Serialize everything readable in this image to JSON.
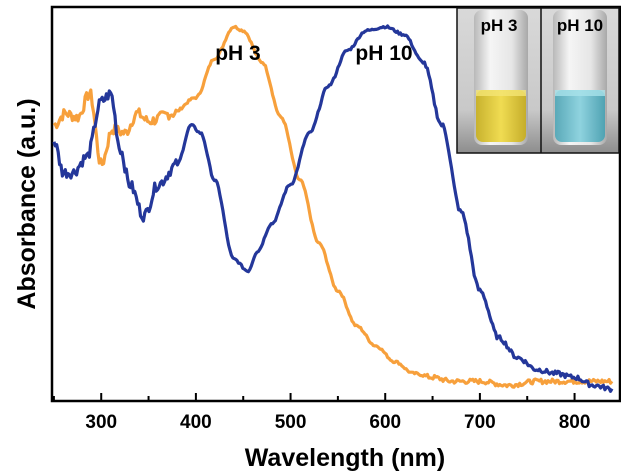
{
  "chart_data": {
    "type": "line",
    "xlabel": "Wavelength (nm)",
    "ylabel": "Absorbance (a.u.)",
    "xlim": [
      248,
      848
    ],
    "ylim": [
      0,
      1.0
    ],
    "x_ticks": [
      300,
      400,
      500,
      600,
      700,
      800
    ],
    "y_ticks_shown": false,
    "grid": false,
    "colors": {
      "pH 3": "#f7a03c",
      "pH 10": "#24379a"
    },
    "series": [
      {
        "name": "pH 3",
        "x": [
          250,
          262,
          275,
          288,
          300,
          312,
          325,
          338,
          350,
          375,
          400,
          420,
          440,
          450,
          470,
          490,
          510,
          530,
          550,
          570,
          590,
          610,
          630,
          650,
          670,
          700,
          730,
          760,
          800,
          840
        ],
        "values": [
          0.7,
          0.73,
          0.72,
          0.78,
          0.6,
          0.69,
          0.68,
          0.73,
          0.71,
          0.73,
          0.77,
          0.87,
          0.95,
          0.94,
          0.86,
          0.72,
          0.56,
          0.4,
          0.28,
          0.19,
          0.14,
          0.1,
          0.07,
          0.06,
          0.05,
          0.05,
          0.04,
          0.05,
          0.05,
          0.05
        ]
      },
      {
        "name": "pH 10",
        "x": [
          250,
          260,
          270,
          285,
          300,
          310,
          320,
          330,
          345,
          360,
          380,
          395,
          405,
          420,
          440,
          455,
          465,
          480,
          500,
          520,
          540,
          560,
          580,
          600,
          620,
          640,
          660,
          680,
          700,
          720,
          740,
          760,
          780,
          800,
          820,
          840
        ],
        "values": [
          0.66,
          0.58,
          0.58,
          0.62,
          0.76,
          0.78,
          0.64,
          0.55,
          0.47,
          0.55,
          0.6,
          0.7,
          0.68,
          0.56,
          0.36,
          0.33,
          0.38,
          0.45,
          0.55,
          0.68,
          0.8,
          0.89,
          0.94,
          0.95,
          0.93,
          0.86,
          0.7,
          0.48,
          0.28,
          0.16,
          0.11,
          0.08,
          0.07,
          0.06,
          0.04,
          0.03
        ]
      }
    ],
    "annotations": [
      "pH 3",
      "pH 10"
    ],
    "inset": {
      "labels": [
        "pH 3",
        "pH 10"
      ],
      "description_colors": [
        "yellow",
        "cyan"
      ]
    }
  }
}
